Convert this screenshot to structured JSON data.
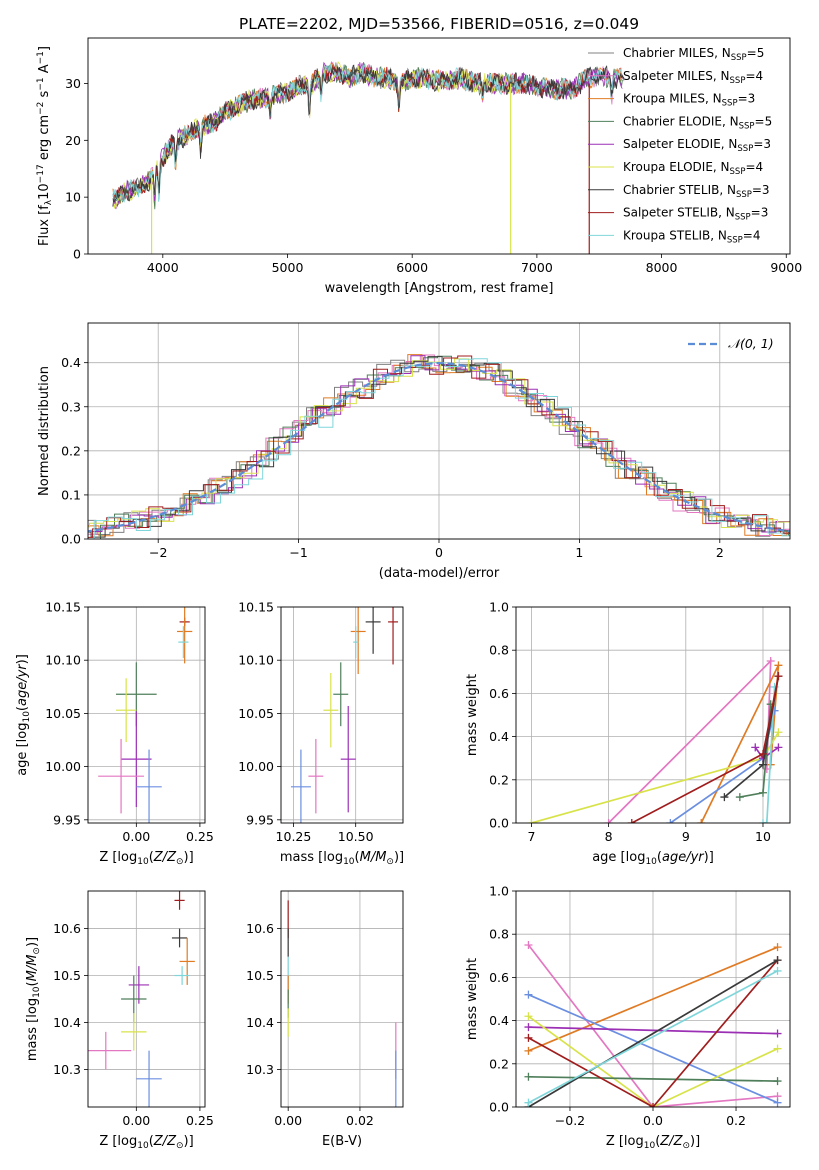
{
  "figure": {
    "title": "PLATE=2202, MJD=53566, FIBERID=0516, z=0.049"
  },
  "model_colors": [
    "#808080",
    "#e377c2",
    "#e07b24",
    "#4f7f5a",
    "#9c30b5",
    "#d8e34a",
    "#3a3a3a",
    "#a01d1d",
    "#7fd6da",
    "#6b8fe0"
  ],
  "chart_data": [
    {
      "id": "spectrum",
      "type": "line",
      "xlabel": "wavelength [Angstrom, rest frame]",
      "ylabel": "Flux [f_λ10^-17 erg cm^-2 s^-1 A^-1]",
      "ylabel_parts": {
        "a": "Flux [f",
        "b": "λ",
        "c": "10",
        "d": "−17",
        "e": " erg cm",
        "f": "−2",
        "g": " s",
        "h": "−1",
        "i": " A",
        "j": "−1",
        "k": "]"
      },
      "xlim": [
        3400,
        9030
      ],
      "ylim": [
        0,
        38
      ],
      "xticks": [
        4000,
        5000,
        6000,
        7000,
        8000,
        9000
      ],
      "yticks": [
        0,
        10,
        20,
        30
      ],
      "grid": false,
      "legend_position": "right",
      "legend": [
        {
          "label": "Chabrier MILES, N",
          "n": "5"
        },
        {
          "label": "Salpeter MILES, N",
          "n": "4"
        },
        {
          "label": "Kroupa MILES, N",
          "n": "3"
        },
        {
          "label": "Chabrier ELODIE, N",
          "n": "5"
        },
        {
          "label": "Salpeter ELODIE, N",
          "n": "3"
        },
        {
          "label": "Kroupa ELODIE, N",
          "n": "4"
        },
        {
          "label": "Chabrier STELIB, N",
          "n": "3"
        },
        {
          "label": "Salpeter STELIB, N",
          "n": "3"
        },
        {
          "label": "Kroupa STELIB, N",
          "n": "4"
        }
      ],
      "legend_sub": "SSP",
      "continuum": [
        [
          3600,
          9.5
        ],
        [
          3700,
          11
        ],
        [
          3800,
          11.5
        ],
        [
          3900,
          13
        ],
        [
          4000,
          17
        ],
        [
          4100,
          20
        ],
        [
          4200,
          21
        ],
        [
          4300,
          22.5
        ],
        [
          4400,
          23
        ],
        [
          4500,
          25
        ],
        [
          4600,
          26
        ],
        [
          4700,
          27
        ],
        [
          4800,
          27.5
        ],
        [
          4900,
          28
        ],
        [
          5000,
          28.5
        ],
        [
          5100,
          29.5
        ],
        [
          5200,
          30
        ],
        [
          5300,
          32
        ],
        [
          5400,
          32
        ],
        [
          5500,
          31
        ],
        [
          5600,
          32
        ],
        [
          5700,
          31
        ],
        [
          5800,
          31
        ],
        [
          5900,
          30
        ],
        [
          6000,
          31
        ],
        [
          6100,
          31
        ],
        [
          6200,
          30.5
        ],
        [
          6300,
          30.5
        ],
        [
          6400,
          31
        ],
        [
          6500,
          30
        ],
        [
          6600,
          30
        ],
        [
          6700,
          30
        ],
        [
          6800,
          30
        ],
        [
          6900,
          30
        ],
        [
          7000,
          29.5
        ],
        [
          7100,
          29
        ],
        [
          7200,
          29
        ],
        [
          7300,
          29
        ],
        [
          7400,
          31
        ],
        [
          7500,
          31.5
        ],
        [
          7600,
          31
        ],
        [
          7700,
          31
        ]
      ]
    },
    {
      "id": "residuals",
      "type": "step",
      "xlabel": "(data-model)/error",
      "ylabel": "Normed distribution",
      "xlim": [
        -2.5,
        2.5
      ],
      "ylim": [
        0,
        0.49
      ],
      "xticks": [
        -2,
        -1,
        0,
        1,
        2
      ],
      "yticks": [
        0.0,
        0.1,
        0.2,
        0.3,
        0.4
      ],
      "grid": true,
      "legend_position": "top-right",
      "legend": "𝒩(0, 1)",
      "gaussian": {
        "mean": 0,
        "sigma": 1
      }
    },
    {
      "id": "age_vs_Z",
      "type": "errorbar",
      "xlabel": "Z [log10(Z/Z⊙)]",
      "ylabel": "age  [log10(age/yr)]",
      "xlim": [
        -0.19,
        0.27
      ],
      "ylim": [
        9.947,
        10.15
      ],
      "xticks": [
        0.0,
        0.25
      ],
      "yticks": [
        9.95,
        10.0,
        10.05,
        10.1,
        10.15
      ],
      "grid": true,
      "points": [
        {
          "x": 0.19,
          "y": 10.136,
          "xerr": 0.02,
          "yerr": 0.004,
          "c": 7
        },
        {
          "x": 0.19,
          "y": 10.127,
          "xerr": 0.03,
          "yerr": 0.03,
          "c": 2
        },
        {
          "x": 0.185,
          "y": 10.117,
          "xerr": 0.02,
          "yerr": 0.015,
          "c": 8
        },
        {
          "x": 0.0,
          "y": 10.068,
          "xerr": 0.08,
          "yerr": 0.03,
          "c": 3
        },
        {
          "x": -0.04,
          "y": 10.053,
          "xerr": 0.04,
          "yerr": 0.03,
          "c": 5
        },
        {
          "x": 0.0,
          "y": 10.007,
          "xerr": 0.06,
          "yerr": 0.045,
          "c": 4
        },
        {
          "x": -0.06,
          "y": 9.991,
          "xerr": 0.09,
          "yerr": 0.035,
          "c": 1
        },
        {
          "x": 0.05,
          "y": 9.981,
          "xerr": 0.05,
          "yerr": 0.035,
          "c": 9
        }
      ]
    },
    {
      "id": "age_vs_mass",
      "type": "errorbar",
      "xlabel": "mass [log10(M/M⊙)]",
      "ylabel": "",
      "xlim": [
        10.2,
        10.69
      ],
      "ylim": [
        9.947,
        10.15
      ],
      "xticks": [
        10.25,
        10.5
      ],
      "xtick_labels": [
        "10.25",
        "10.50"
      ],
      "yticks": [
        9.95,
        10.0,
        10.05,
        10.1,
        10.15
      ],
      "grid": true,
      "points": [
        {
          "x": 10.65,
          "y": 10.136,
          "xerr": 0.02,
          "yerr": 0.04,
          "c": 7
        },
        {
          "x": 10.57,
          "y": 10.136,
          "xerr": 0.03,
          "yerr": 0.03,
          "c": 6
        },
        {
          "x": 10.51,
          "y": 10.127,
          "xerr": 0.03,
          "yerr": 0.04,
          "c": 2
        },
        {
          "x": 10.5,
          "y": 10.117,
          "xerr": 0.01,
          "yerr": 0.015,
          "c": 8
        },
        {
          "x": 10.44,
          "y": 10.068,
          "xerr": 0.03,
          "yerr": 0.03,
          "c": 3
        },
        {
          "x": 10.4,
          "y": 10.053,
          "xerr": 0.03,
          "yerr": 0.035,
          "c": 5
        },
        {
          "x": 10.47,
          "y": 10.007,
          "xerr": 0.03,
          "yerr": 0.05,
          "c": 4
        },
        {
          "x": 10.34,
          "y": 9.991,
          "xerr": 0.03,
          "yerr": 0.035,
          "c": 1
        },
        {
          "x": 10.28,
          "y": 9.981,
          "xerr": 0.04,
          "yerr": 0.035,
          "c": 9
        }
      ]
    },
    {
      "id": "weight_vs_age",
      "type": "line",
      "xlabel": "age  [log10(age/yr)]",
      "ylabel": "mass weight",
      "xlim": [
        6.8,
        10.35
      ],
      "ylim": [
        0,
        1.0
      ],
      "xticks": [
        7,
        8,
        9,
        10
      ],
      "yticks": [
        0.0,
        0.2,
        0.4,
        0.6,
        0.8,
        1.0
      ],
      "grid": true,
      "series": [
        {
          "c": 1,
          "pts": [
            [
              8.0,
              0.0
            ],
            [
              10.1,
              0.75
            ],
            [
              10.05,
              0.25
            ]
          ]
        },
        {
          "c": 2,
          "pts": [
            [
              9.2,
              0.0
            ],
            [
              10.2,
              0.73
            ],
            [
              10.1,
              0.27
            ]
          ]
        },
        {
          "c": 5,
          "pts": [
            [
              7.0,
              0.0
            ],
            [
              10.0,
              0.3
            ],
            [
              10.2,
              0.42
            ]
          ]
        },
        {
          "c": 9,
          "pts": [
            [
              8.8,
              0.0
            ],
            [
              10.0,
              0.3
            ],
            [
              10.15,
              0.52
            ]
          ]
        },
        {
          "c": 4,
          "pts": [
            [
              9.9,
              0.35
            ],
            [
              10.0,
              0.3
            ],
            [
              10.2,
              0.35
            ]
          ]
        },
        {
          "c": 3,
          "pts": [
            [
              9.7,
              0.12
            ],
            [
              10.0,
              0.14
            ],
            [
              10.1,
              0.55
            ]
          ]
        },
        {
          "c": 8,
          "pts": [
            [
              10.0,
              0.0
            ],
            [
              10.05,
              0.0
            ],
            [
              10.15,
              0.63
            ]
          ]
        },
        {
          "c": 6,
          "pts": [
            [
              9.5,
              0.12
            ],
            [
              10.0,
              0.27
            ],
            [
              10.2,
              0.68
            ]
          ]
        },
        {
          "c": 7,
          "pts": [
            [
              8.3,
              0.0
            ],
            [
              10.0,
              0.32
            ],
            [
              10.2,
              0.68
            ]
          ]
        }
      ]
    },
    {
      "id": "mass_vs_Z",
      "type": "errorbar",
      "xlabel": "Z [log10(Z/Z⊙)]",
      "ylabel": "mass [log10(M/M⊙)]",
      "xlim": [
        -0.19,
        0.27
      ],
      "ylim": [
        10.22,
        10.68
      ],
      "xticks": [
        0.0,
        0.25
      ],
      "yticks": [
        10.3,
        10.4,
        10.5,
        10.6
      ],
      "grid": true,
      "points": [
        {
          "x": 0.17,
          "y": 10.66,
          "xerr": 0.02,
          "yerr": 0.02,
          "c": 7
        },
        {
          "x": 0.17,
          "y": 10.58,
          "xerr": 0.03,
          "yerr": 0.02,
          "c": 6
        },
        {
          "x": 0.2,
          "y": 10.53,
          "xerr": 0.03,
          "yerr": 0.05,
          "c": 2
        },
        {
          "x": 0.18,
          "y": 10.5,
          "xerr": 0.03,
          "yerr": 0.02,
          "c": 8
        },
        {
          "x": 0.01,
          "y": 10.48,
          "xerr": 0.04,
          "yerr": 0.04,
          "c": 4
        },
        {
          "x": -0.01,
          "y": 10.45,
          "xerr": 0.05,
          "yerr": 0.05,
          "c": 3
        },
        {
          "x": -0.01,
          "y": 10.38,
          "xerr": 0.05,
          "yerr": 0.04,
          "c": 5
        },
        {
          "x": -0.12,
          "y": 10.34,
          "xerr": 0.1,
          "yerr": 0.04,
          "c": 1
        },
        {
          "x": 0.05,
          "y": 10.28,
          "xerr": 0.05,
          "yerr": 0.06,
          "c": 9
        }
      ]
    },
    {
      "id": "mass_vs_EBV",
      "type": "errorbar",
      "xlabel": "E(B-V)",
      "ylabel": "",
      "xlim": [
        -0.002,
        0.032
      ],
      "ylim": [
        10.22,
        10.68
      ],
      "xticks": [
        0.0,
        0.02
      ],
      "xtick_labels": [
        "0.00",
        "0.02"
      ],
      "yticks": [
        10.3,
        10.4,
        10.5,
        10.6
      ],
      "grid": true,
      "points": [
        {
          "x": 0.0,
          "y": 10.62,
          "xerr": 0,
          "yerr": 0.04,
          "c": 7
        },
        {
          "x": 0.0,
          "y": 10.57,
          "xerr": 0,
          "yerr": 0.03,
          "c": 6
        },
        {
          "x": 0.0,
          "y": 10.5,
          "xerr": 0,
          "yerr": 0.04,
          "c": 8
        },
        {
          "x": 0.0,
          "y": 10.47,
          "xerr": 0,
          "yerr": 0.03,
          "c": 2
        },
        {
          "x": 0.0,
          "y": 10.44,
          "xerr": 0,
          "yerr": 0.03,
          "c": 3
        },
        {
          "x": 0.0,
          "y": 10.4,
          "xerr": 0,
          "yerr": 0.03,
          "c": 5
        },
        {
          "x": 0.03,
          "y": 10.34,
          "xerr": 0,
          "yerr": 0.06,
          "c": 1
        },
        {
          "x": 0.03,
          "y": 10.28,
          "xerr": 0,
          "yerr": 0.06,
          "c": 9
        }
      ]
    },
    {
      "id": "weight_vs_Z",
      "type": "line",
      "xlabel": "Z [log10(Z/Z⊙)]",
      "ylabel": "mass weight",
      "xlim": [
        -0.33,
        0.33
      ],
      "ylim": [
        0,
        1.0
      ],
      "xticks": [
        -0.2,
        0.0,
        0.2
      ],
      "yticks": [
        0.0,
        0.2,
        0.4,
        0.6,
        0.8,
        1.0
      ],
      "grid": true,
      "series": [
        {
          "c": 1,
          "pts": [
            [
              -0.3,
              0.75
            ],
            [
              0.0,
              0.0
            ],
            [
              0.3,
              0.05
            ]
          ]
        },
        {
          "c": 2,
          "pts": [
            [
              -0.3,
              0.26
            ],
            [
              0.3,
              0.74
            ]
          ]
        },
        {
          "c": 9,
          "pts": [
            [
              -0.3,
              0.52
            ],
            [
              0.3,
              0.02
            ]
          ]
        },
        {
          "c": 4,
          "pts": [
            [
              -0.3,
              0.37
            ],
            [
              0.3,
              0.34
            ]
          ]
        },
        {
          "c": 5,
          "pts": [
            [
              -0.3,
              0.42
            ],
            [
              0.0,
              0.0
            ],
            [
              0.3,
              0.27
            ]
          ]
        },
        {
          "c": 3,
          "pts": [
            [
              -0.3,
              0.14
            ],
            [
              0.3,
              0.12
            ]
          ]
        },
        {
          "c": 7,
          "pts": [
            [
              -0.3,
              0.32
            ],
            [
              0.0,
              0.0
            ],
            [
              0.3,
              0.68
            ]
          ]
        },
        {
          "c": 6,
          "pts": [
            [
              -0.3,
              0.0
            ],
            [
              0.3,
              0.68
            ]
          ]
        },
        {
          "c": 8,
          "pts": [
            [
              -0.3,
              0.02
            ],
            [
              0.3,
              0.63
            ]
          ]
        }
      ]
    }
  ]
}
